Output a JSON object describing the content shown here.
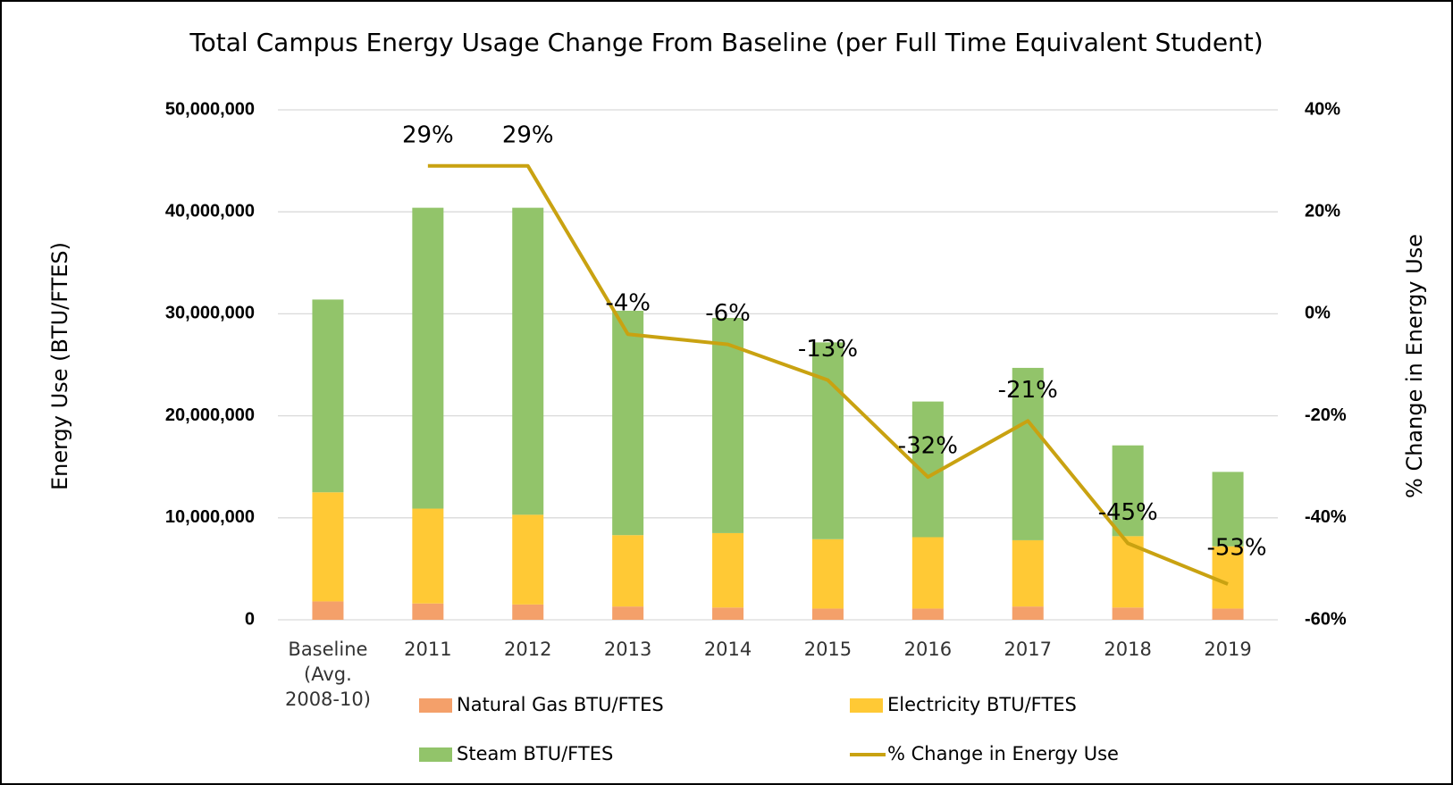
{
  "chart_data": {
    "type": "bar_line",
    "title": "Total Campus Energy Usage Change From Baseline (per Full Time Equivalent Student)",
    "y_label": "Energy Use (BTU/FTES)",
    "y2_label": "% Change in Energy Use",
    "categories": [
      "Baseline (Avg. 2008-10)",
      "2011",
      "2012",
      "2013",
      "2014",
      "2015",
      "2016",
      "2017",
      "2018",
      "2019"
    ],
    "series": [
      {
        "name": "Natural Gas BTU/FTES",
        "type": "bar",
        "color": "#f4a06a",
        "values": [
          1800000,
          1600000,
          1500000,
          1300000,
          1200000,
          1100000,
          1100000,
          1300000,
          1200000,
          1100000
        ]
      },
      {
        "name": "Electricity BTU/FTES",
        "type": "bar",
        "color": "#ffc935",
        "values": [
          10700000,
          9300000,
          8800000,
          7000000,
          7300000,
          6800000,
          7000000,
          6500000,
          7000000,
          6100000
        ]
      },
      {
        "name": "Steam BTU/FTES",
        "type": "bar",
        "color": "#92c46a",
        "values": [
          18900000,
          29500000,
          30100000,
          22000000,
          21100000,
          19300000,
          13300000,
          16900000,
          8900000,
          7300000
        ]
      },
      {
        "name": "% Change in Energy Use",
        "type": "line",
        "axis": "y2",
        "color": "#c9a211",
        "values": [
          null,
          29,
          29,
          -4,
          -6,
          -13,
          -32,
          -21,
          -45,
          -53
        ],
        "value_labels": [
          null,
          "29%",
          "29%",
          "-4%",
          "-6%",
          "-13%",
          "-32%",
          "-21%",
          "-45%",
          "-53%"
        ]
      }
    ],
    "stacked": true,
    "ylim": [
      0,
      50000000
    ],
    "yticks": [
      {
        "value": 0,
        "label": "0"
      },
      {
        "value": 10000000,
        "label": "10,000,000"
      },
      {
        "value": 20000000,
        "label": "20,000,000"
      },
      {
        "value": 30000000,
        "label": "30,000,000"
      },
      {
        "value": 40000000,
        "label": "40,000,000"
      },
      {
        "value": 50000000,
        "label": "50,000,000"
      }
    ],
    "y2lim": [
      -60,
      40
    ],
    "y2ticks": [
      {
        "value": -60,
        "label": "-60%"
      },
      {
        "value": -40,
        "label": "-40%"
      },
      {
        "value": -20,
        "label": "-20%"
      },
      {
        "value": 0,
        "label": "0%"
      },
      {
        "value": 20,
        "label": "20%"
      },
      {
        "value": 40,
        "label": "40%"
      }
    ],
    "grid": true,
    "legend": "bottom"
  }
}
